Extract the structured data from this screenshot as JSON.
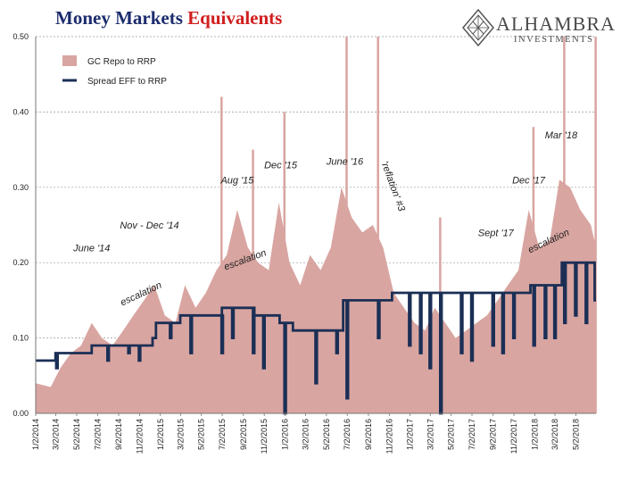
{
  "header": {
    "title_part1": "Money Markets",
    "title_part2": "Equivalents",
    "title_color1": "#1c2c6e",
    "title_color2": "#d0201f",
    "logo_name": "ALHAMBRA",
    "logo_sub": "INVESTMENTS",
    "logo_icon": "diamond-lattice-icon"
  },
  "chart_data": {
    "type": "area",
    "title": "Money Markets Equivalents",
    "xlabel": "",
    "ylabel": "",
    "ylim": [
      0,
      0.5
    ],
    "yticks": [
      "0.00",
      "0.10",
      "0.20",
      "0.30",
      "0.40",
      "0.50"
    ],
    "xticks": [
      "1/2/2014",
      "3/2/2014",
      "5/2/2014",
      "7/2/2014",
      "9/2/2014",
      "11/2/2014",
      "1/2/2015",
      "3/2/2015",
      "5/2/2015",
      "7/2/2015",
      "9/2/2015",
      "11/2/2015",
      "1/2/2016",
      "3/2/2016",
      "5/2/2016",
      "7/2/2016",
      "9/2/2016",
      "11/2/2016",
      "1/2/2017",
      "3/2/2017",
      "5/2/2017",
      "7/2/2017",
      "9/2/2017",
      "11/2/2017",
      "1/2/2018",
      "3/2/2018",
      "5/2/2018"
    ],
    "grid": "horizontal-dashed",
    "legend_position": "top-left",
    "x_range": [
      "2014-01-02",
      "2018-06-30"
    ],
    "series": [
      {
        "name": "GC Repo to RRP",
        "kind": "area",
        "color": "#d9a5a1",
        "points": [
          [
            "2014-01-02",
            0.04
          ],
          [
            "2014-02-15",
            0.035
          ],
          [
            "2014-03-15",
            0.06
          ],
          [
            "2014-04-15",
            0.08
          ],
          [
            "2014-05-15",
            0.09
          ],
          [
            "2014-06-15",
            0.12
          ],
          [
            "2014-07-15",
            0.1
          ],
          [
            "2014-08-15",
            0.09
          ],
          [
            "2014-09-15",
            0.11
          ],
          [
            "2014-10-15",
            0.13
          ],
          [
            "2014-11-15",
            0.15
          ],
          [
            "2014-12-15",
            0.17
          ],
          [
            "2015-01-15",
            0.13
          ],
          [
            "2015-02-15",
            0.12
          ],
          [
            "2015-03-15",
            0.17
          ],
          [
            "2015-04-15",
            0.14
          ],
          [
            "2015-05-15",
            0.16
          ],
          [
            "2015-06-15",
            0.19
          ],
          [
            "2015-07-15",
            0.21
          ],
          [
            "2015-08-15",
            0.27
          ],
          [
            "2015-09-15",
            0.22
          ],
          [
            "2015-10-15",
            0.2
          ],
          [
            "2015-11-15",
            0.19
          ],
          [
            "2015-12-15",
            0.28
          ],
          [
            "2016-01-15",
            0.2
          ],
          [
            "2016-02-15",
            0.17
          ],
          [
            "2016-03-15",
            0.21
          ],
          [
            "2016-04-15",
            0.19
          ],
          [
            "2016-05-15",
            0.22
          ],
          [
            "2016-06-15",
            0.3
          ],
          [
            "2016-07-15",
            0.26
          ],
          [
            "2016-08-15",
            0.24
          ],
          [
            "2016-09-15",
            0.25
          ],
          [
            "2016-10-15",
            0.22
          ],
          [
            "2016-11-15",
            0.16
          ],
          [
            "2016-12-15",
            0.14
          ],
          [
            "2017-01-15",
            0.12
          ],
          [
            "2017-02-15",
            0.11
          ],
          [
            "2017-03-15",
            0.14
          ],
          [
            "2017-04-15",
            0.12
          ],
          [
            "2017-05-15",
            0.1
          ],
          [
            "2017-06-15",
            0.11
          ],
          [
            "2017-07-15",
            0.12
          ],
          [
            "2017-08-15",
            0.13
          ],
          [
            "2017-09-15",
            0.15
          ],
          [
            "2017-10-15",
            0.17
          ],
          [
            "2017-11-15",
            0.19
          ],
          [
            "2017-12-15",
            0.27
          ],
          [
            "2018-01-15",
            0.22
          ],
          [
            "2018-02-15",
            0.23
          ],
          [
            "2018-03-15",
            0.31
          ],
          [
            "2018-04-15",
            0.3
          ],
          [
            "2018-05-15",
            0.27
          ],
          [
            "2018-06-15",
            0.25
          ],
          [
            "2018-06-30",
            0.22
          ]
        ],
        "spikes": [
          [
            "2015-06-30",
            0.42
          ],
          [
            "2015-09-30",
            0.35
          ],
          [
            "2015-12-31",
            0.4
          ],
          [
            "2016-06-30",
            0.5
          ],
          [
            "2016-09-30",
            0.5
          ],
          [
            "2017-03-31",
            0.26
          ],
          [
            "2017-12-29",
            0.38
          ],
          [
            "2018-03-29",
            0.5
          ],
          [
            "2018-06-29",
            0.5
          ]
        ]
      },
      {
        "name": "Spread EFF to RRP",
        "kind": "step-line",
        "color": "#1b2f55",
        "base_steps": [
          [
            "2014-01-02",
            0.07
          ],
          [
            "2014-03-01",
            0.08
          ],
          [
            "2014-06-15",
            0.09
          ],
          [
            "2014-12-10",
            0.1
          ],
          [
            "2014-12-20",
            0.12
          ],
          [
            "2015-03-01",
            0.13
          ],
          [
            "2015-07-01",
            0.14
          ],
          [
            "2015-10-01",
            0.13
          ],
          [
            "2015-12-17",
            0.12
          ],
          [
            "2016-01-25",
            0.11
          ],
          [
            "2016-06-20",
            0.15
          ],
          [
            "2016-11-10",
            0.16
          ],
          [
            "2017-12-20",
            0.17
          ],
          [
            "2018-03-22",
            0.2
          ],
          [
            "2018-06-26",
            0.15
          ]
        ],
        "dips": [
          [
            "2014-03-03",
            0.06
          ],
          [
            "2014-05-01",
            0.08
          ],
          [
            "2014-07-31",
            0.07
          ],
          [
            "2014-09-30",
            0.08
          ],
          [
            "2014-10-31",
            0.07
          ],
          [
            "2015-01-30",
            0.1
          ],
          [
            "2015-03-31",
            0.08
          ],
          [
            "2015-06-30",
            0.08
          ],
          [
            "2015-07-31",
            0.1
          ],
          [
            "2015-09-30",
            0.08
          ],
          [
            "2015-10-30",
            0.06
          ],
          [
            "2015-12-31",
            0.0
          ],
          [
            "2016-03-31",
            0.04
          ],
          [
            "2016-05-31",
            0.08
          ],
          [
            "2016-06-30",
            0.02
          ],
          [
            "2016-09-30",
            0.1
          ],
          [
            "2016-12-30",
            0.09
          ],
          [
            "2017-01-31",
            0.08
          ],
          [
            "2017-02-28",
            0.06
          ],
          [
            "2017-03-31",
            0.0
          ],
          [
            "2017-05-31",
            0.08
          ],
          [
            "2017-06-30",
            0.07
          ],
          [
            "2017-08-31",
            0.09
          ],
          [
            "2017-09-29",
            0.08
          ],
          [
            "2017-10-31",
            0.1
          ],
          [
            "2017-12-29",
            0.09
          ],
          [
            "2018-01-31",
            0.1
          ],
          [
            "2018-02-28",
            0.1
          ],
          [
            "2018-03-29",
            0.12
          ],
          [
            "2018-04-30",
            0.13
          ],
          [
            "2018-05-31",
            0.12
          ]
        ]
      }
    ],
    "annotations": [
      {
        "text": "June '14",
        "date": "2014-06-15",
        "y": 0.215,
        "rotate": 0
      },
      {
        "text": "escalation",
        "date": "2014-11-10",
        "y": 0.155,
        "rotate": -25
      },
      {
        "text": "Nov - Dec '14",
        "date": "2014-12-01",
        "y": 0.245,
        "rotate": 0
      },
      {
        "text": "Aug '15",
        "date": "2015-08-15",
        "y": 0.305,
        "rotate": 0
      },
      {
        "text": "escalation",
        "date": "2015-09-10",
        "y": 0.2,
        "rotate": -20
      },
      {
        "text": "Dec '15",
        "date": "2015-12-20",
        "y": 0.325,
        "rotate": 0
      },
      {
        "text": "June '16",
        "date": "2016-06-25",
        "y": 0.33,
        "rotate": 0
      },
      {
        "text": "'reflation' #3",
        "date": "2016-11-05",
        "y": 0.3,
        "rotate": 70
      },
      {
        "text": "Sept '17",
        "date": "2017-09-10",
        "y": 0.235,
        "rotate": 0
      },
      {
        "text": "Dec '17",
        "date": "2017-12-15",
        "y": 0.305,
        "rotate": 0
      },
      {
        "text": "escalation",
        "date": "2018-02-15",
        "y": 0.225,
        "rotate": -25
      },
      {
        "text": "Mar '18",
        "date": "2018-03-20",
        "y": 0.365,
        "rotate": 0
      }
    ]
  }
}
